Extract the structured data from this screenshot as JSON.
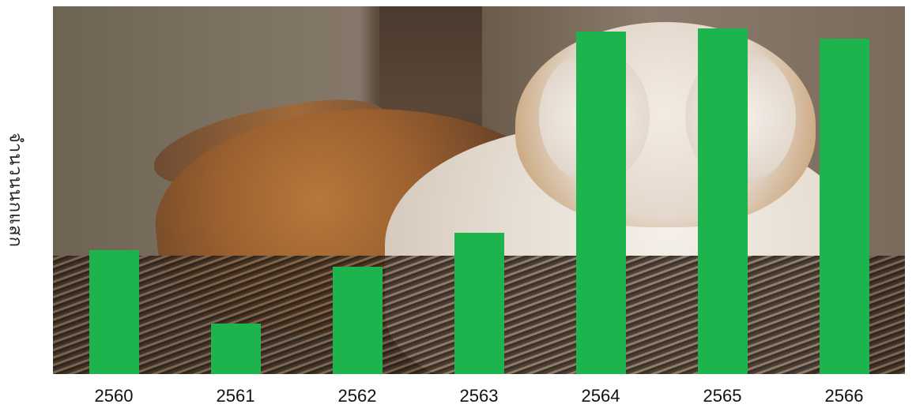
{
  "chart_data": {
    "type": "bar",
    "title": "",
    "xlabel": "",
    "ylabel": "จำนวนนกแสก",
    "categories": [
      "2560",
      "2561",
      "2562",
      "2563",
      "2564",
      "2565",
      "2566"
    ],
    "values": [
      157,
      64,
      136,
      179,
      434,
      438,
      425
    ],
    "ylim": [
      0,
      466
    ],
    "grid": false,
    "legend": "none",
    "bar_color": "#1db44d",
    "background": "photo of a barn owl on a nest"
  }
}
